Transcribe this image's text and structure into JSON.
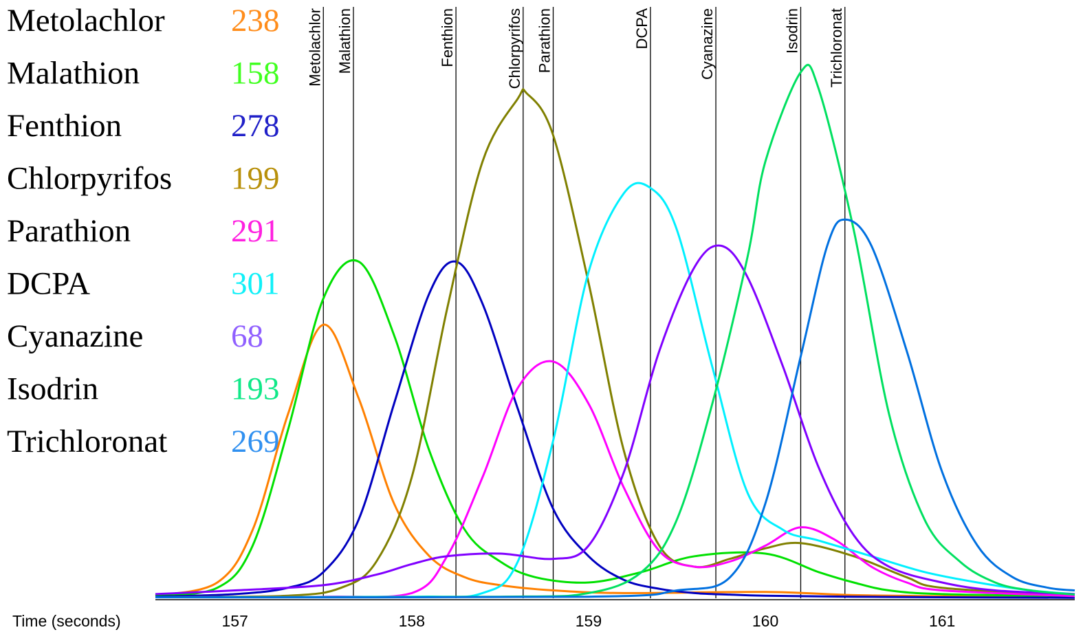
{
  "chart_data": {
    "type": "line",
    "xlabel": "Time (seconds)",
    "ylabel": "",
    "title": "",
    "xlim": [
      156.55,
      161.75
    ],
    "ylim": [
      0,
      100
    ],
    "xticks": [
      157,
      158,
      159,
      160,
      161
    ],
    "grid": false,
    "legend": [
      {
        "name": "Metolachlor",
        "value": "238",
        "color": "#ff8c1a"
      },
      {
        "name": "Malathion",
        "value": "158",
        "color": "#40ff20"
      },
      {
        "name": "Fenthion",
        "value": "278",
        "color": "#2020c8"
      },
      {
        "name": "Chlorpyrifos",
        "value": "199",
        "color": "#b8900a"
      },
      {
        "name": "Parathion",
        "value": "291",
        "color": "#ff20e0"
      },
      {
        "name": "DCPA",
        "value": "301",
        "color": "#10f0f8"
      },
      {
        "name": "Cyanazine",
        "value": "68",
        "color": "#9060ff"
      },
      {
        "name": "Isodrin",
        "value": "193",
        "color": "#10e888"
      },
      {
        "name": "Trichloronat",
        "value": "269",
        "color": "#3090f0"
      }
    ],
    "markers": [
      {
        "label": "Metolachlor",
        "x": 157.5
      },
      {
        "label": "Malathion",
        "x": 157.67
      },
      {
        "label": "Fenthion",
        "x": 158.25
      },
      {
        "label": "Chlorpyrifos",
        "x": 158.63
      },
      {
        "label": "Parathion",
        "x": 158.8
      },
      {
        "label": "DCPA",
        "x": 159.35
      },
      {
        "label": "Cyanazine",
        "x": 159.72
      },
      {
        "label": "Isodrin",
        "x": 160.2
      },
      {
        "label": "Trichloronat",
        "x": 160.45
      }
    ],
    "series": [
      {
        "color": "#ff8000",
        "x": [
          156.55,
          156.9,
          157.1,
          157.3,
          157.5,
          157.7,
          157.9,
          158.1,
          158.3,
          158.5,
          158.8,
          159.2,
          160.0,
          160.5,
          161.0,
          161.75
        ],
        "y": [
          0.5,
          3,
          13,
          35,
          52,
          38,
          18,
          8,
          4,
          2.5,
          1.5,
          1,
          1.2,
          0.6,
          0.4,
          0.2
        ]
      },
      {
        "color": "#00e000",
        "x": [
          156.55,
          156.9,
          157.1,
          157.3,
          157.5,
          157.7,
          157.9,
          158.1,
          158.3,
          158.5,
          158.7,
          159.0,
          159.3,
          159.6,
          160.0,
          160.3,
          160.5,
          160.7,
          161.0,
          161.75
        ],
        "y": [
          0.5,
          2,
          10,
          32,
          57,
          64,
          50,
          28,
          13,
          7,
          4,
          3,
          5,
          8,
          8.5,
          5,
          3,
          1.5,
          0.8,
          0.4
        ]
      },
      {
        "color": "#0000c0",
        "x": [
          156.55,
          157.0,
          157.3,
          157.5,
          157.7,
          157.9,
          158.1,
          158.25,
          158.4,
          158.6,
          158.8,
          159.0,
          159.2,
          159.4,
          159.6,
          159.8,
          160.0,
          160.5,
          161.0,
          161.75
        ],
        "y": [
          0.3,
          0.8,
          2,
          5,
          15,
          37,
          58,
          64,
          56,
          36,
          17,
          8,
          3.5,
          1.8,
          1,
          0.7,
          0.5,
          0.3,
          0.2,
          0.1
        ]
      },
      {
        "color": "#808000",
        "x": [
          156.55,
          157.3,
          157.6,
          157.8,
          158.0,
          158.2,
          158.4,
          158.6,
          158.65,
          158.8,
          159.0,
          159.2,
          159.4,
          159.6,
          159.8,
          160.0,
          160.2,
          160.5,
          160.8,
          161.0,
          161.75
        ],
        "y": [
          0.2,
          0.5,
          2,
          7,
          23,
          55,
          83,
          95,
          96,
          88,
          60,
          28,
          10,
          6,
          7.5,
          9.5,
          10.5,
          8,
          4,
          2,
          0.5
        ]
      },
      {
        "color": "#ff00ff",
        "x": [
          156.55,
          157.5,
          158.0,
          158.2,
          158.4,
          158.6,
          158.8,
          159.0,
          159.2,
          159.4,
          159.6,
          159.8,
          160.0,
          160.2,
          160.4,
          160.6,
          160.8,
          161.0,
          161.75
        ],
        "y": [
          0.2,
          0.3,
          1,
          8,
          23,
          40,
          45,
          37,
          21,
          9,
          6,
          7,
          10,
          13.5,
          11,
          6,
          3,
          1.5,
          0.4
        ]
      },
      {
        "color": "#00f0ff",
        "x": [
          156.55,
          158.0,
          158.4,
          158.6,
          158.8,
          159.0,
          159.2,
          159.35,
          159.5,
          159.7,
          159.9,
          160.1,
          160.3,
          160.6,
          160.9,
          161.2,
          161.5,
          161.75
        ],
        "y": [
          0.2,
          0.3,
          1,
          7,
          30,
          62,
          77,
          78,
          70,
          44,
          20,
          13,
          11,
          8,
          5,
          3,
          1.5,
          0.8
        ]
      },
      {
        "color": "#8000ff",
        "x": [
          156.55,
          157.0,
          157.5,
          157.8,
          158.0,
          158.2,
          158.5,
          158.8,
          159.0,
          159.2,
          159.4,
          159.6,
          159.75,
          159.9,
          160.1,
          160.3,
          160.5,
          160.7,
          161.0,
          161.3,
          161.75
        ],
        "y": [
          0.8,
          1.5,
          2.5,
          4.5,
          6.5,
          8,
          8.5,
          7.5,
          10,
          24,
          47,
          63,
          67,
          61,
          44,
          25,
          12,
          6,
          3,
          1.5,
          0.8
        ]
      },
      {
        "color": "#00e060",
        "x": [
          156.55,
          158.5,
          159.0,
          159.3,
          159.5,
          159.7,
          159.9,
          160.0,
          160.2,
          160.3,
          160.5,
          160.7,
          160.9,
          161.1,
          161.3,
          161.5,
          161.75
        ],
        "y": [
          0.2,
          0.3,
          1,
          5,
          15,
          37,
          65,
          83,
          100,
          97,
          70,
          35,
          15,
          7,
          3,
          1.5,
          0.7
        ]
      },
      {
        "color": "#0070e0",
        "x": [
          156.55,
          159.0,
          159.5,
          159.8,
          160.0,
          160.2,
          160.35,
          160.45,
          160.6,
          160.8,
          161.0,
          161.2,
          161.4,
          161.6,
          161.75
        ],
        "y": [
          0.2,
          0.3,
          1.5,
          4,
          18,
          46,
          67,
          72,
          67,
          47,
          24,
          10,
          4,
          2,
          1.5
        ]
      }
    ]
  }
}
